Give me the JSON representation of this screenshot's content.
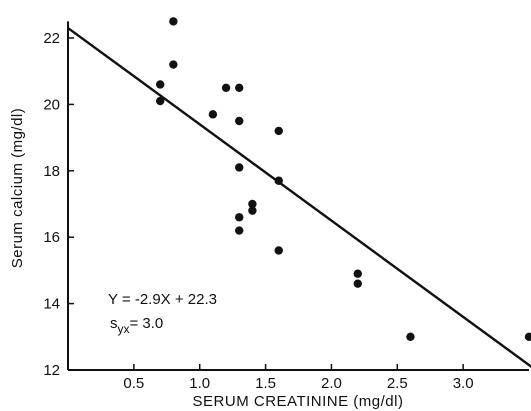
{
  "chart_data": {
    "type": "scatter",
    "xlabel": "SERUM CREATININE (mg/dl)",
    "ylabel": "Serum calcium (mg/dl)",
    "xlim": [
      0,
      3.5
    ],
    "ylim": [
      12,
      22.5
    ],
    "x_ticks": [
      "0.5",
      "1.0",
      "1.5",
      "2.0",
      "2.5",
      "3.0"
    ],
    "x_tick_values": [
      0.5,
      1.0,
      1.5,
      2.0,
      2.5,
      3.0
    ],
    "y_ticks": [
      "12",
      "14",
      "16",
      "18",
      "20",
      "22"
    ],
    "y_tick_values": [
      12,
      14,
      16,
      18,
      20,
      22
    ],
    "grid": false,
    "points": [
      {
        "x": 0.7,
        "y": 20.6
      },
      {
        "x": 0.7,
        "y": 20.1
      },
      {
        "x": 0.8,
        "y": 22.5
      },
      {
        "x": 0.8,
        "y": 21.2
      },
      {
        "x": 1.1,
        "y": 19.7
      },
      {
        "x": 1.2,
        "y": 20.5
      },
      {
        "x": 1.3,
        "y": 20.5
      },
      {
        "x": 1.3,
        "y": 19.5
      },
      {
        "x": 1.3,
        "y": 18.1
      },
      {
        "x": 1.3,
        "y": 16.6
      },
      {
        "x": 1.3,
        "y": 16.2
      },
      {
        "x": 1.4,
        "y": 17.0
      },
      {
        "x": 1.4,
        "y": 16.8
      },
      {
        "x": 1.6,
        "y": 19.2
      },
      {
        "x": 1.6,
        "y": 17.7
      },
      {
        "x": 1.6,
        "y": 15.6
      },
      {
        "x": 2.2,
        "y": 14.9
      },
      {
        "x": 2.2,
        "y": 14.6
      },
      {
        "x": 2.6,
        "y": 13.0
      },
      {
        "x": 3.5,
        "y": 13.0
      }
    ],
    "regression": {
      "slope": -2.9,
      "intercept": 22.3
    },
    "annotation": {
      "equation": "Y = -2.9X + 22.3",
      "sd_symbol": "s",
      "sd_subscript": "yx",
      "sd_value": "= 3.0"
    }
  }
}
